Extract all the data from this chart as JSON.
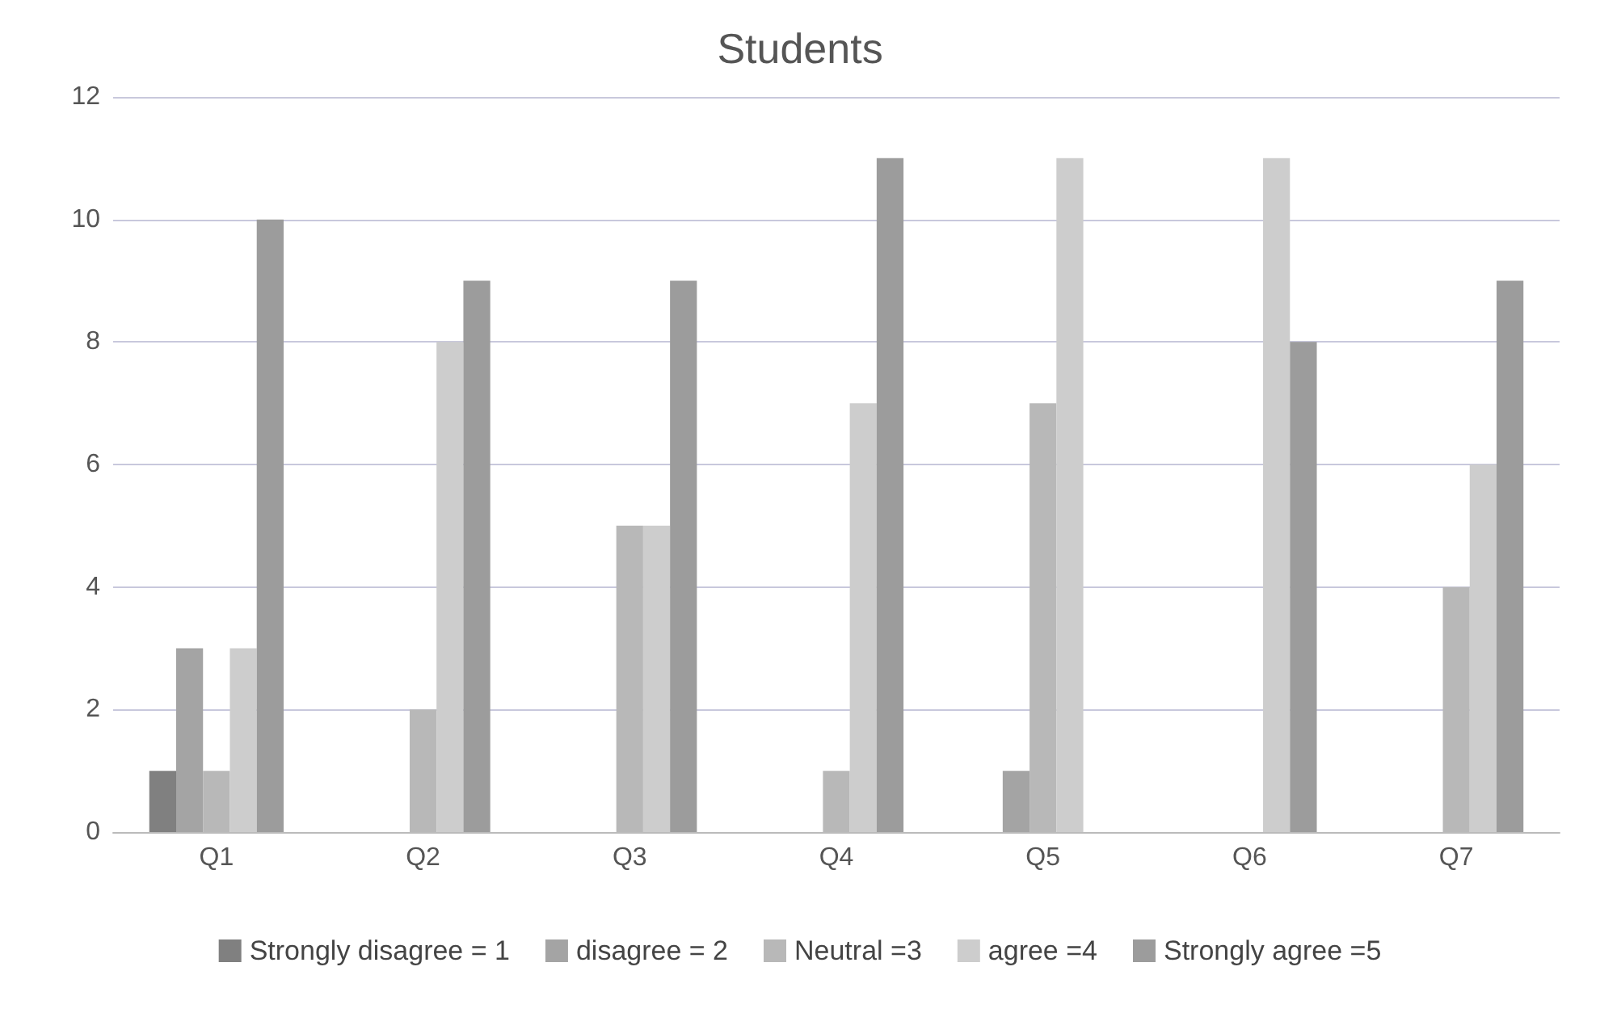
{
  "chart_data": {
    "type": "bar",
    "title": "Students",
    "categories": [
      "Q1",
      "Q2",
      "Q3",
      "Q4",
      "Q5",
      "Q6",
      "Q7"
    ],
    "series": [
      {
        "name": "Strongly disagree = 1",
        "color": "#808080",
        "values": [
          1,
          0,
          0,
          0,
          0,
          0,
          0
        ]
      },
      {
        "name": "disagree = 2",
        "color": "#a4a4a4",
        "values": [
          3,
          0,
          0,
          0,
          1,
          0,
          0
        ]
      },
      {
        "name": "Neutral =3",
        "color": "#b8b8b8",
        "values": [
          1,
          2,
          5,
          1,
          7,
          0,
          4
        ]
      },
      {
        "name": "agree =4",
        "color": "#cdcdcd",
        "values": [
          3,
          8,
          5,
          7,
          11,
          11,
          6
        ]
      },
      {
        "name": "Strongly agree =5",
        "color": "#9c9c9c",
        "values": [
          10,
          9,
          9,
          11,
          0,
          8,
          9
        ]
      }
    ],
    "ylim": [
      0,
      12
    ],
    "yticks": [
      0,
      2,
      4,
      6,
      8,
      10,
      12
    ],
    "grid": "y",
    "legend": "bottom"
  }
}
